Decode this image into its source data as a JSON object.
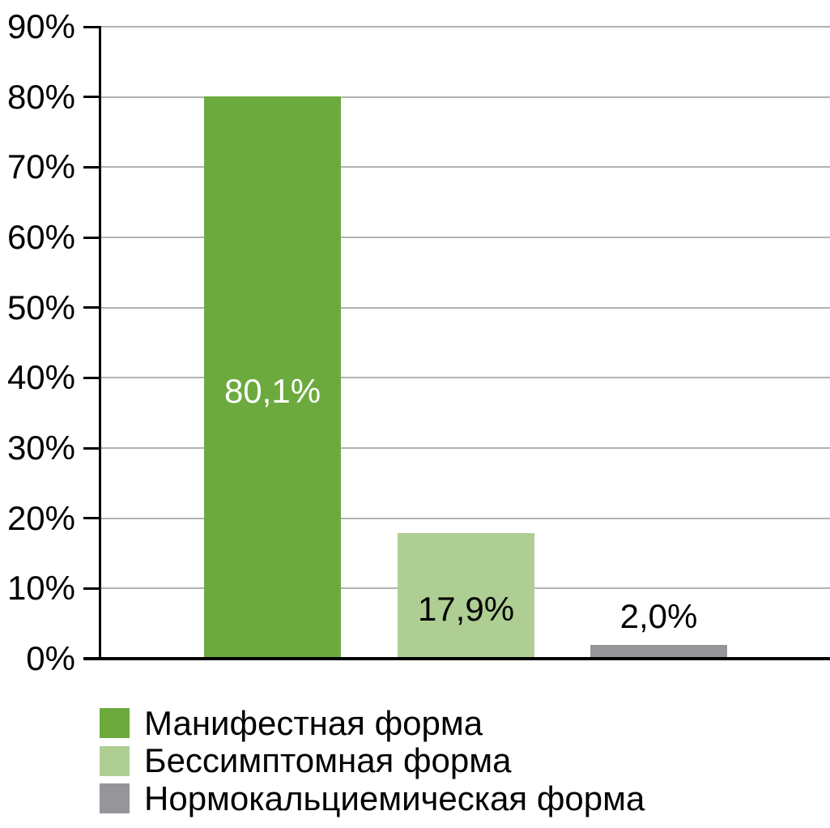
{
  "chart_data": {
    "type": "bar",
    "title": "",
    "categories": [
      "Манифестная форма",
      "Бессимптомная форма",
      "Нормокальциемическая форма"
    ],
    "values": [
      80.1,
      17.9,
      2.0
    ],
    "bar_labels": [
      "80,1%",
      "17,9%",
      "2,0%"
    ],
    "bar_colors": [
      "#6caa3d",
      "#aece94",
      "#96969a"
    ],
    "bar_label_colors": [
      "#ffffff",
      "#000000",
      "#000000"
    ],
    "bar_label_placement": [
      "inside",
      "inside",
      "above"
    ],
    "xlabel": "",
    "ylabel": "",
    "ylim": [
      0,
      90
    ],
    "ytick_interval": 10,
    "ytick_labels": [
      "0%",
      "10%",
      "20%",
      "30%",
      "40%",
      "50%",
      "60%",
      "70%",
      "80%",
      "90%"
    ],
    "grid": true,
    "decimal_separator": ",",
    "legend_position": "bottom-left",
    "legend": [
      {
        "label": "Манифестная форма",
        "color": "#6caa3d"
      },
      {
        "label": "Бессимптомная форма",
        "color": "#aece94"
      },
      {
        "label": "Нормокальциемическая форма",
        "color": "#96969a"
      }
    ]
  },
  "colors": {
    "background": "#ffffff",
    "axis": "#000000",
    "gridline": "#b2b2b2",
    "text": "#000000"
  }
}
